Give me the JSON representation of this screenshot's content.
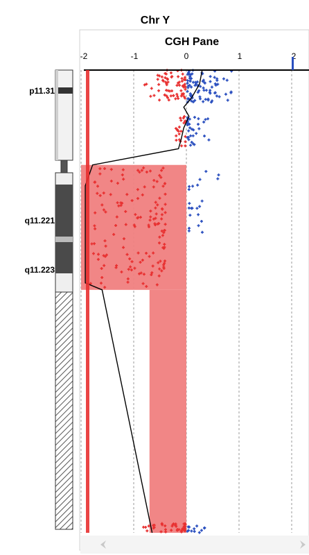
{
  "chart_data": {
    "type": "scatter",
    "title": "Chr Y",
    "subtitle": "CGH Pane",
    "xlabel": "",
    "ylabel": "",
    "x_ticks": [
      "-2",
      "-1",
      "0",
      "1",
      "2"
    ],
    "xlim": [
      -2.1,
      2.1
    ],
    "grid": true,
    "bands": [
      {
        "name": "p11.31"
      },
      {
        "name": "q11.221"
      },
      {
        "name": "q11.223"
      }
    ],
    "aberrations": [
      {
        "type": "loss",
        "x_from": -2,
        "x_to": 0,
        "ypos_from": 0.205,
        "ypos_to": 0.475
      },
      {
        "type": "loss",
        "x_from": -0.7,
        "x_to": 0,
        "ypos_from": 0.475,
        "ypos_to": 1.0
      }
    ],
    "point_clusters": [
      {
        "type": "loss",
        "x_range": [
          -0.8,
          -0.02
        ],
        "ypos_range": [
          0.0,
          0.065
        ],
        "count": 70
      },
      {
        "type": "gain",
        "x_range": [
          0.02,
          0.9
        ],
        "ypos_range": [
          0.0,
          0.07
        ],
        "count": 85
      },
      {
        "type": "loss",
        "x_range": [
          -0.2,
          -0.02
        ],
        "ypos_range": [
          0.1,
          0.165
        ],
        "count": 22
      },
      {
        "type": "gain",
        "x_range": [
          0.02,
          0.5
        ],
        "ypos_range": [
          0.1,
          0.165
        ],
        "count": 32
      },
      {
        "type": "loss",
        "x_range": [
          -1.85,
          -0.4
        ],
        "ypos_range": [
          0.21,
          0.47
        ],
        "count": 150
      },
      {
        "type": "gain",
        "x_range": [
          0.05,
          0.75
        ],
        "ypos_range": [
          0.21,
          0.36
        ],
        "count": 22
      },
      {
        "type": "loss",
        "x_range": [
          -0.85,
          -0.02
        ],
        "ypos_range": [
          0.98,
          1.0
        ],
        "count": 40
      },
      {
        "type": "gain",
        "x_range": [
          0.02,
          0.4
        ],
        "ypos_range": [
          0.985,
          1.0
        ],
        "count": 12
      }
    ],
    "smooth_line": [
      {
        "x": 0.3,
        "ypos": 0.0
      },
      {
        "x": 0.25,
        "ypos": 0.03
      },
      {
        "x": 0.1,
        "ypos": 0.06
      },
      {
        "x": -0.05,
        "ypos": 0.08
      },
      {
        "x": 0.05,
        "ypos": 0.1
      },
      {
        "x": -0.05,
        "ypos": 0.125
      },
      {
        "x": -0.1,
        "ypos": 0.15
      },
      {
        "x": -0.15,
        "ypos": 0.17
      },
      {
        "x": -1.78,
        "ypos": 0.205
      },
      {
        "x": -1.92,
        "ypos": 0.25
      },
      {
        "x": -1.92,
        "ypos": 0.46
      },
      {
        "x": -1.6,
        "ypos": 0.475
      },
      {
        "x": -0.65,
        "ypos": 1.0
      }
    ],
    "colors": {
      "loss": "#e83030",
      "gain": "#2a4fbf",
      "loss_fill": "#f08080",
      "grid": "#9a9a9a",
      "line": "#000000"
    }
  },
  "scrollbar": {
    "left_icon": "scroll-left-arrow",
    "right_icon": "scroll-right-arrow"
  }
}
